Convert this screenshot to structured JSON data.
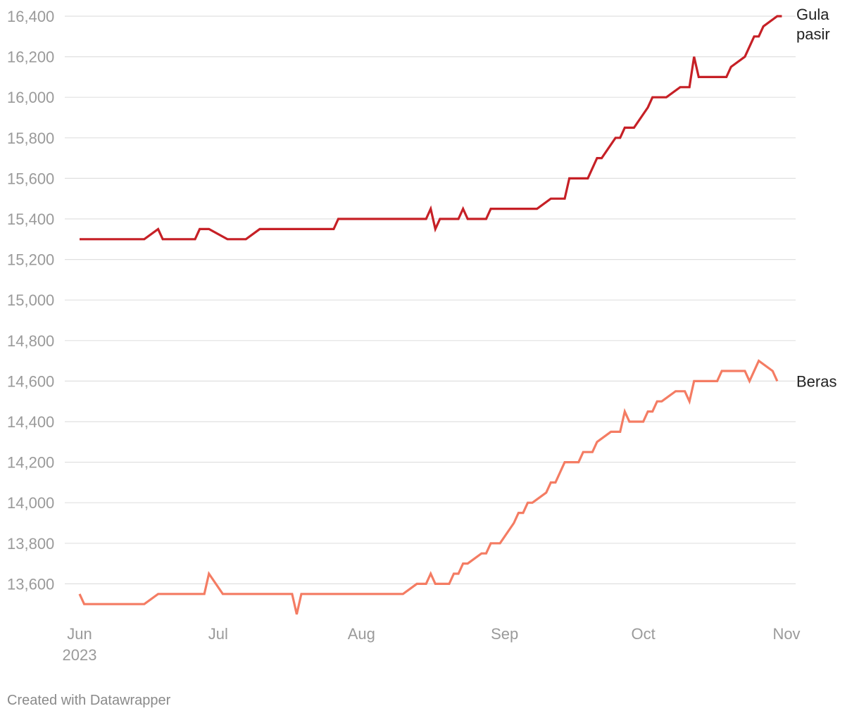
{
  "chart_data": {
    "type": "line",
    "title": "",
    "xlabel": "",
    "ylabel": "",
    "ylim": [
      13450,
      16400
    ],
    "y_ticks": [
      13600,
      13800,
      14000,
      14200,
      14400,
      14600,
      14800,
      15000,
      15200,
      15400,
      15600,
      15800,
      16000,
      16200,
      16400
    ],
    "y_tick_labels": [
      "13,600",
      "13,800",
      "14,000",
      "14,200",
      "14,400",
      "14,600",
      "14,800",
      "15,000",
      "15,200",
      "15,400",
      "15,600",
      "15,800",
      "16,000",
      "16,200",
      "16,400"
    ],
    "x_domain": [
      "2023-06-01",
      "2023-11-01"
    ],
    "x_ticks": [
      {
        "date": "2023-06-01",
        "label": "Jun",
        "sublabel": "2023"
      },
      {
        "date": "2023-07-01",
        "label": "Jul",
        "sublabel": ""
      },
      {
        "date": "2023-08-01",
        "label": "Aug",
        "sublabel": ""
      },
      {
        "date": "2023-09-01",
        "label": "Sep",
        "sublabel": ""
      },
      {
        "date": "2023-10-01",
        "label": "Oct",
        "sublabel": ""
      },
      {
        "date": "2023-11-01",
        "label": "Nov",
        "sublabel": ""
      }
    ],
    "grid": true,
    "series": [
      {
        "name": "Gula pasir",
        "label_lines": [
          "Gula",
          "pasir"
        ],
        "color": "#c62026",
        "points": [
          [
            "2023-06-01",
            15300
          ],
          [
            "2023-06-15",
            15300
          ],
          [
            "2023-06-18",
            15350
          ],
          [
            "2023-06-19",
            15300
          ],
          [
            "2023-06-26",
            15300
          ],
          [
            "2023-06-27",
            15350
          ],
          [
            "2023-06-29",
            15350
          ],
          [
            "2023-07-03",
            15300
          ],
          [
            "2023-07-07",
            15300
          ],
          [
            "2023-07-10",
            15350
          ],
          [
            "2023-07-26",
            15350
          ],
          [
            "2023-07-27",
            15400
          ],
          [
            "2023-08-15",
            15400
          ],
          [
            "2023-08-16",
            15450
          ],
          [
            "2023-08-17",
            15350
          ],
          [
            "2023-08-18",
            15400
          ],
          [
            "2023-08-22",
            15400
          ],
          [
            "2023-08-23",
            15450
          ],
          [
            "2023-08-24",
            15400
          ],
          [
            "2023-08-28",
            15400
          ],
          [
            "2023-08-29",
            15450
          ],
          [
            "2023-09-08",
            15450
          ],
          [
            "2023-09-11",
            15500
          ],
          [
            "2023-09-14",
            15500
          ],
          [
            "2023-09-15",
            15600
          ],
          [
            "2023-09-19",
            15600
          ],
          [
            "2023-09-21",
            15700
          ],
          [
            "2023-09-22",
            15700
          ],
          [
            "2023-09-25",
            15800
          ],
          [
            "2023-09-26",
            15800
          ],
          [
            "2023-09-27",
            15850
          ],
          [
            "2023-09-29",
            15850
          ],
          [
            "2023-10-02",
            15950
          ],
          [
            "2023-10-03",
            16000
          ],
          [
            "2023-10-06",
            16000
          ],
          [
            "2023-10-09",
            16050
          ],
          [
            "2023-10-11",
            16050
          ],
          [
            "2023-10-12",
            16200
          ],
          [
            "2023-10-13",
            16100
          ],
          [
            "2023-10-19",
            16100
          ],
          [
            "2023-10-20",
            16150
          ],
          [
            "2023-10-23",
            16200
          ],
          [
            "2023-10-25",
            16300
          ],
          [
            "2023-10-26",
            16300
          ],
          [
            "2023-10-27",
            16350
          ],
          [
            "2023-10-30",
            16400
          ],
          [
            "2023-10-31",
            16400
          ]
        ]
      },
      {
        "name": "Beras",
        "label_lines": [
          "Beras"
        ],
        "color": "#f47c63",
        "points": [
          [
            "2023-06-01",
            13550
          ],
          [
            "2023-06-02",
            13500
          ],
          [
            "2023-06-15",
            13500
          ],
          [
            "2023-06-18",
            13550
          ],
          [
            "2023-06-28",
            13550
          ],
          [
            "2023-06-29",
            13650
          ],
          [
            "2023-07-02",
            13550
          ],
          [
            "2023-07-17",
            13550
          ],
          [
            "2023-07-18",
            13450
          ],
          [
            "2023-07-19",
            13550
          ],
          [
            "2023-08-10",
            13550
          ],
          [
            "2023-08-13",
            13600
          ],
          [
            "2023-08-15",
            13600
          ],
          [
            "2023-08-16",
            13650
          ],
          [
            "2023-08-17",
            13600
          ],
          [
            "2023-08-20",
            13600
          ],
          [
            "2023-08-21",
            13650
          ],
          [
            "2023-08-22",
            13650
          ],
          [
            "2023-08-23",
            13700
          ],
          [
            "2023-08-24",
            13700
          ],
          [
            "2023-08-27",
            13750
          ],
          [
            "2023-08-28",
            13750
          ],
          [
            "2023-08-29",
            13800
          ],
          [
            "2023-08-31",
            13800
          ],
          [
            "2023-09-03",
            13900
          ],
          [
            "2023-09-04",
            13950
          ],
          [
            "2023-09-05",
            13950
          ],
          [
            "2023-09-06",
            14000
          ],
          [
            "2023-09-07",
            14000
          ],
          [
            "2023-09-10",
            14050
          ],
          [
            "2023-09-11",
            14100
          ],
          [
            "2023-09-12",
            14100
          ],
          [
            "2023-09-14",
            14200
          ],
          [
            "2023-09-17",
            14200
          ],
          [
            "2023-09-18",
            14250
          ],
          [
            "2023-09-20",
            14250
          ],
          [
            "2023-09-21",
            14300
          ],
          [
            "2023-09-24",
            14350
          ],
          [
            "2023-09-26",
            14350
          ],
          [
            "2023-09-27",
            14450
          ],
          [
            "2023-09-28",
            14400
          ],
          [
            "2023-10-01",
            14400
          ],
          [
            "2023-10-02",
            14450
          ],
          [
            "2023-10-03",
            14450
          ],
          [
            "2023-10-04",
            14500
          ],
          [
            "2023-10-05",
            14500
          ],
          [
            "2023-10-08",
            14550
          ],
          [
            "2023-10-10",
            14550
          ],
          [
            "2023-10-11",
            14500
          ],
          [
            "2023-10-12",
            14600
          ],
          [
            "2023-10-17",
            14600
          ],
          [
            "2023-10-18",
            14650
          ],
          [
            "2023-10-23",
            14650
          ],
          [
            "2023-10-24",
            14600
          ],
          [
            "2023-10-26",
            14700
          ],
          [
            "2023-10-29",
            14650
          ],
          [
            "2023-10-30",
            14600
          ]
        ]
      }
    ]
  },
  "footer": {
    "credit": "Created with Datawrapper"
  }
}
